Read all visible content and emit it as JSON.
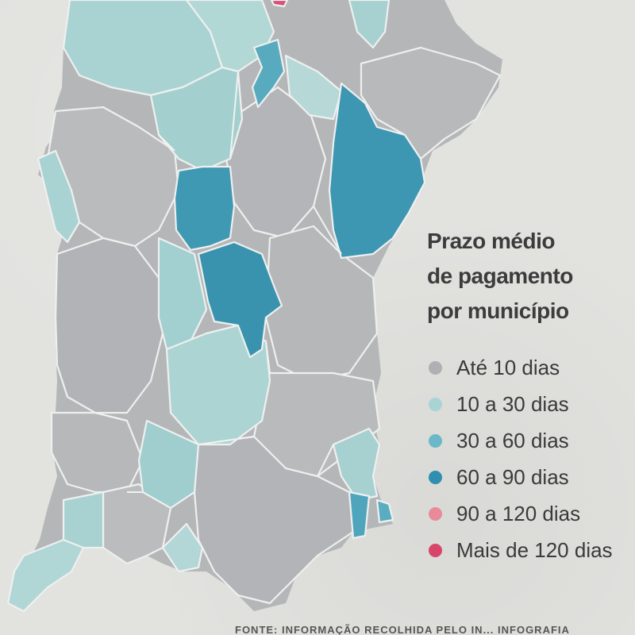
{
  "legend": {
    "title_lines": [
      "Prazo médio",
      "de pagamento",
      "por município"
    ],
    "items": [
      {
        "label": "Até 10 dias",
        "color": "#aeb0b3"
      },
      {
        "label": "10 a 30 dias",
        "color": "#a8d4d4"
      },
      {
        "label": "30 a 60 dias",
        "color": "#6bb8c8"
      },
      {
        "label": "60 a 90 dias",
        "color": "#2f8fae"
      },
      {
        "label": "90 a 120 dias",
        "color": "#e88a9a"
      },
      {
        "label": "Mais de 120 dias",
        "color": "#d8446a"
      }
    ]
  },
  "source": "FONTE: INFORMAÇÃO RECOLHIDA PELO IN... INFOGRAFIA"
}
